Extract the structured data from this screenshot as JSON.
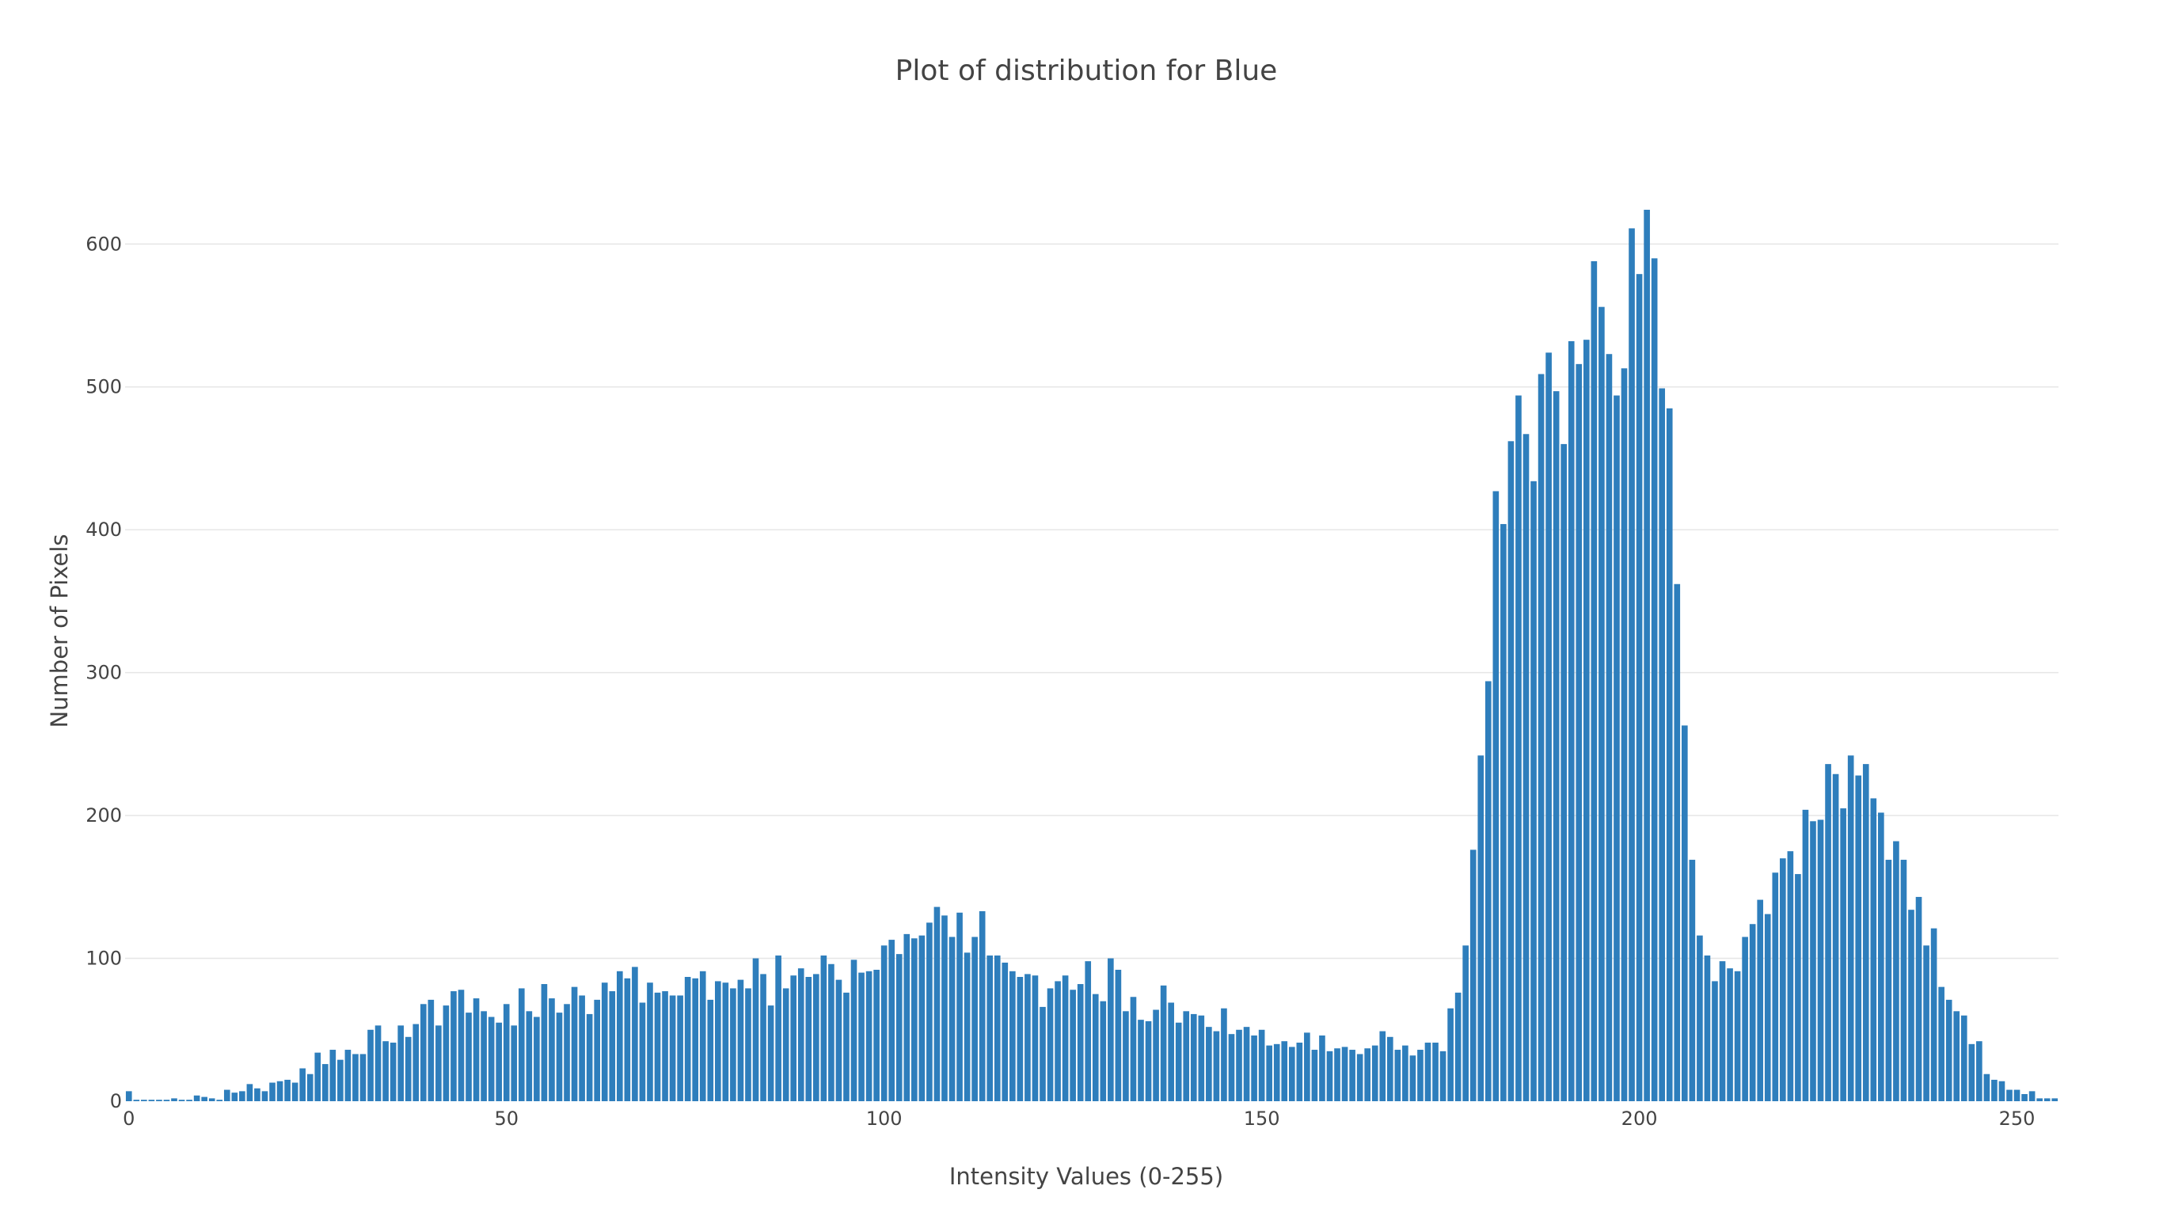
{
  "chart_data": {
    "type": "bar",
    "title": "Plot of distribution for Blue",
    "xlabel": "Intensity Values (0-255)",
    "ylabel": "Number of Pixels",
    "bar_color": "#2e7ebc",
    "grid": true,
    "xlim": [
      0,
      255
    ],
    "ylim": [
      0,
      660
    ],
    "x_ticks": [
      0,
      50,
      100,
      150,
      200,
      250
    ],
    "y_ticks": [
      0,
      100,
      200,
      300,
      400,
      500,
      600
    ],
    "x": [
      0,
      1,
      2,
      3,
      4,
      5,
      6,
      7,
      8,
      9,
      10,
      11,
      12,
      13,
      14,
      15,
      16,
      17,
      18,
      19,
      20,
      21,
      22,
      23,
      24,
      25,
      26,
      27,
      28,
      29,
      30,
      31,
      32,
      33,
      34,
      35,
      36,
      37,
      38,
      39,
      40,
      41,
      42,
      43,
      44,
      45,
      46,
      47,
      48,
      49,
      50,
      51,
      52,
      53,
      54,
      55,
      56,
      57,
      58,
      59,
      60,
      61,
      62,
      63,
      64,
      65,
      66,
      67,
      68,
      69,
      70,
      71,
      72,
      73,
      74,
      75,
      76,
      77,
      78,
      79,
      80,
      81,
      82,
      83,
      84,
      85,
      86,
      87,
      88,
      89,
      90,
      91,
      92,
      93,
      94,
      95,
      96,
      97,
      98,
      99,
      100,
      101,
      102,
      103,
      104,
      105,
      106,
      107,
      108,
      109,
      110,
      111,
      112,
      113,
      114,
      115,
      116,
      117,
      118,
      119,
      120,
      121,
      122,
      123,
      124,
      125,
      126,
      127,
      128,
      129,
      130,
      131,
      132,
      133,
      134,
      135,
      136,
      137,
      138,
      139,
      140,
      141,
      142,
      143,
      144,
      145,
      146,
      147,
      148,
      149,
      150,
      151,
      152,
      153,
      154,
      155,
      156,
      157,
      158,
      159,
      160,
      161,
      162,
      163,
      164,
      165,
      166,
      167,
      168,
      169,
      170,
      171,
      172,
      173,
      174,
      175,
      176,
      177,
      178,
      179,
      180,
      181,
      182,
      183,
      184,
      185,
      186,
      187,
      188,
      189,
      190,
      191,
      192,
      193,
      194,
      195,
      196,
      197,
      198,
      199,
      200,
      201,
      202,
      203,
      204,
      205,
      206,
      207,
      208,
      209,
      210,
      211,
      212,
      213,
      214,
      215,
      216,
      217,
      218,
      219,
      220,
      221,
      222,
      223,
      224,
      225,
      226,
      227,
      228,
      229,
      230,
      231,
      232,
      233,
      234,
      235,
      236,
      237,
      238,
      239,
      240,
      241,
      242,
      243,
      244,
      245,
      246,
      247,
      248,
      249,
      250,
      251,
      252,
      253,
      254,
      255
    ],
    "values": [
      7,
      1,
      1,
      1,
      1,
      1,
      2,
      1,
      1,
      4,
      3,
      2,
      1,
      8,
      6,
      7,
      12,
      9,
      7,
      13,
      14,
      15,
      13,
      23,
      19,
      34,
      26,
      36,
      29,
      36,
      33,
      33,
      50,
      53,
      42,
      41,
      53,
      45,
      54,
      68,
      71,
      53,
      67,
      77,
      78,
      62,
      72,
      63,
      59,
      55,
      68,
      53,
      79,
      63,
      59,
      82,
      72,
      62,
      68,
      80,
      74,
      61,
      71,
      83,
      77,
      91,
      86,
      94,
      69,
      83,
      76,
      77,
      74,
      74,
      87,
      86,
      91,
      71,
      84,
      83,
      79,
      85,
      79,
      100,
      89,
      67,
      102,
      79,
      88,
      93,
      87,
      89,
      102,
      96,
      85,
      76,
      99,
      90,
      91,
      92,
      109,
      113,
      103,
      117,
      114,
      116,
      125,
      136,
      130,
      115,
      132,
      104,
      115,
      133,
      102,
      102,
      97,
      91,
      87,
      89,
      88,
      66,
      79,
      84,
      88,
      78,
      82,
      98,
      75,
      70,
      100,
      92,
      63,
      73,
      57,
      56,
      64,
      81,
      69,
      55,
      63,
      61,
      60,
      52,
      49,
      65,
      47,
      50,
      52,
      46,
      50,
      39,
      40,
      42,
      38,
      41,
      48,
      36,
      46,
      35,
      37,
      38,
      36,
      33,
      37,
      39,
      49,
      45,
      36,
      39,
      32,
      36,
      41,
      41,
      35,
      65,
      76,
      109,
      176,
      242,
      294,
      427,
      404,
      462,
      494,
      467,
      434,
      509,
      524,
      497,
      460,
      532,
      516,
      533,
      588,
      556,
      523,
      494,
      513,
      611,
      579,
      624,
      590,
      499,
      485,
      362,
      263,
      169,
      116,
      102,
      84,
      98,
      93,
      91,
      115,
      124,
      141,
      131,
      160,
      170,
      175,
      159,
      204,
      196,
      197,
      236,
      229,
      205,
      242,
      228,
      236,
      212,
      202,
      169,
      182,
      169,
      134,
      143,
      109,
      121,
      80,
      71,
      63,
      60,
      40,
      42,
      19,
      15,
      14,
      8,
      8,
      5,
      7,
      2,
      2,
      2
    ]
  }
}
